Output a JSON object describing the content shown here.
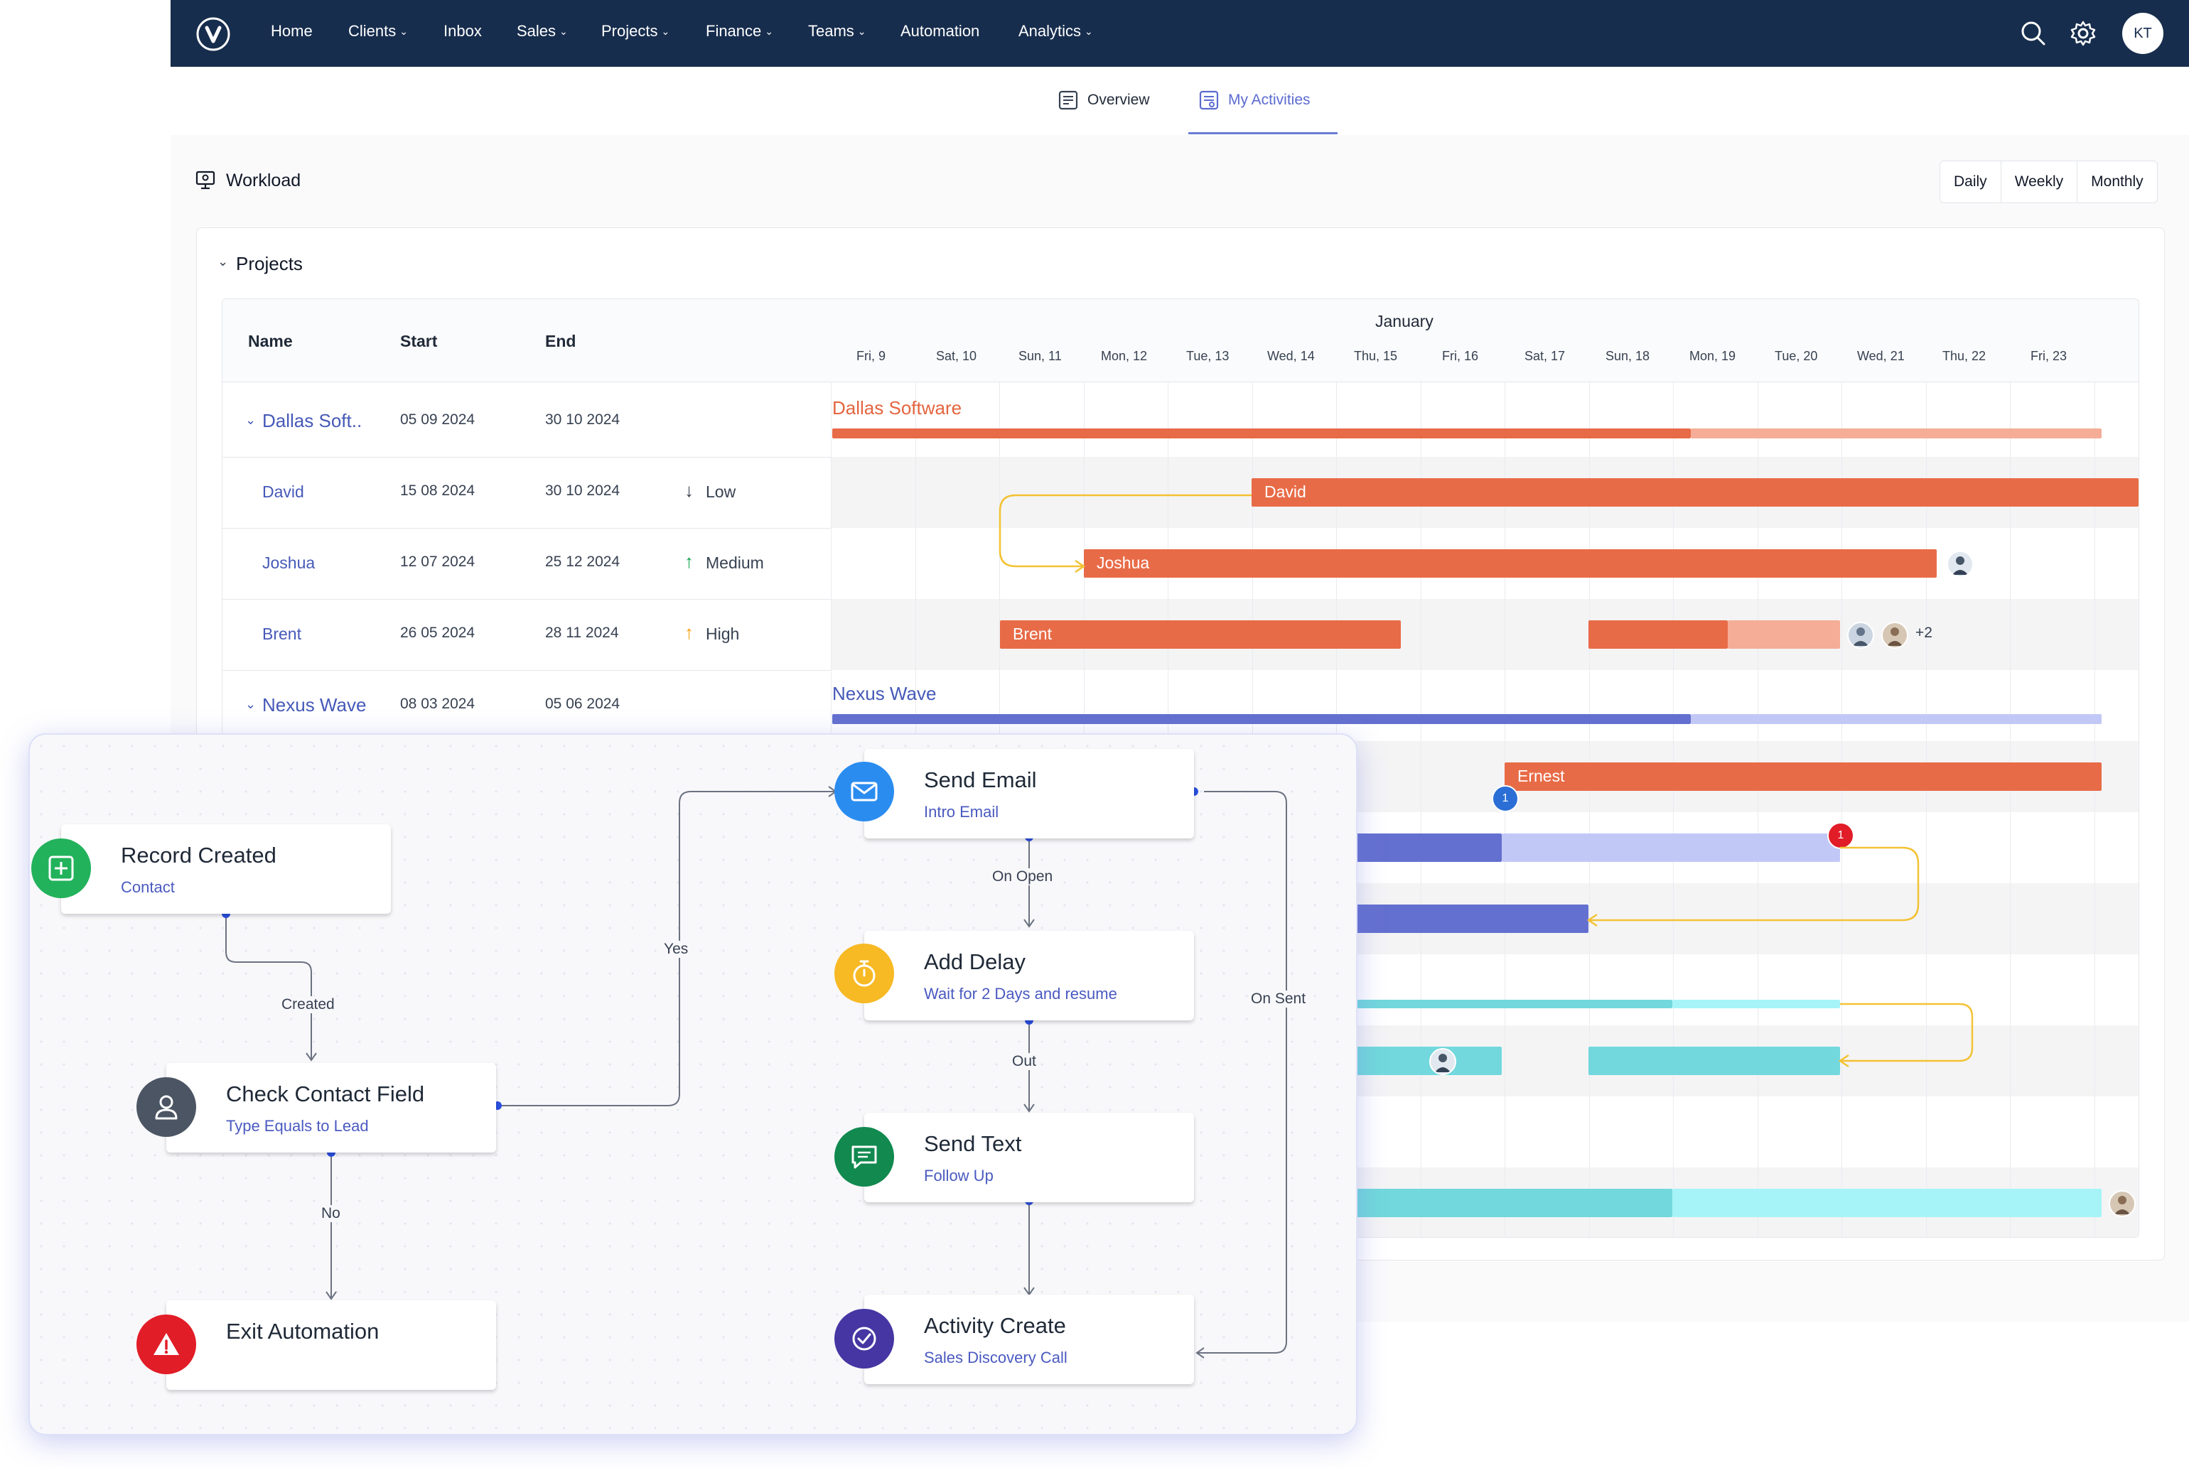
{
  "nav": {
    "items": [
      "Home",
      "Clients",
      "Inbox",
      "Sales",
      "Projects",
      "Finance",
      "Teams",
      "Automation",
      "Analytics"
    ],
    "avatar_initials": "KT"
  },
  "tabs": {
    "overview": "Overview",
    "my_activities": "My Activities"
  },
  "workload": {
    "title": "Workload",
    "views": [
      "Daily",
      "Weekly",
      "Monthly"
    ],
    "section_title": "Projects"
  },
  "gantt": {
    "columns": {
      "name": "Name",
      "start": "Start",
      "end": "End"
    },
    "month": "January",
    "days": [
      "Fri, 9",
      "Sat, 10",
      "Sun, 11",
      "Mon, 12",
      "Tue, 13",
      "Wed, 14",
      "Thu, 15",
      "Fri, 16",
      "Sat, 17",
      "Sun, 18",
      "Mon, 19",
      "Tue, 20",
      "Wed, 21",
      "Thu, 22",
      "Fri, 23"
    ],
    "rows": [
      {
        "name": "Dallas Soft..",
        "start": "05 09 2024",
        "end": "30 10 2024",
        "priority": "",
        "bar_title": "Dallas Software"
      },
      {
        "name": "David",
        "start": "15 08 2024",
        "end": "30 10 2024",
        "priority": "Low",
        "bar_title": "David"
      },
      {
        "name": "Joshua",
        "start": "12 07 2024",
        "end": "25 12 2024",
        "priority": "Medium",
        "bar_title": "Joshua"
      },
      {
        "name": "Brent",
        "start": "26 05 2024",
        "end": "28 11 2024",
        "priority": "High",
        "bar_title": "Brent"
      },
      {
        "name": "Nexus Wave",
        "start": "08 03 2024",
        "end": "05 06 2024",
        "priority": "",
        "bar_title": "Nexus Wave"
      }
    ],
    "ernest_label": "Ernest",
    "badge_one": "1",
    "badge_red": "1",
    "extra_count": "+2"
  },
  "flow": {
    "nodes": {
      "record_created": {
        "title": "Record Created",
        "sub": "Contact"
      },
      "check_contact": {
        "title": "Check Contact Field",
        "sub": "Type Equals to Lead"
      },
      "exit": {
        "title": "Exit Automation",
        "sub": ""
      },
      "send_email": {
        "title": "Send Email",
        "sub": "Intro Email"
      },
      "add_delay": {
        "title": "Add Delay",
        "sub": "Wait for 2 Days and resume"
      },
      "send_text": {
        "title": "Send Text",
        "sub": "Follow Up"
      },
      "activity_create": {
        "title": "Activity Create",
        "sub": "Sales Discovery Call"
      }
    },
    "edges": {
      "created": "Created",
      "no": "No",
      "yes": "Yes",
      "on_open": "On Open",
      "out": "Out",
      "on_sent": "On Sent"
    }
  },
  "colors": {
    "nav_bg": "#172d4d",
    "orange": "#e86b47",
    "orange_light": "#f5ad97",
    "indigo": "#6470cf",
    "indigo_light": "#c2c8f6",
    "teal": "#72d8dd",
    "teal_light": "#a6f4f8",
    "link": "#4659b8",
    "connector": "#f3c234"
  }
}
